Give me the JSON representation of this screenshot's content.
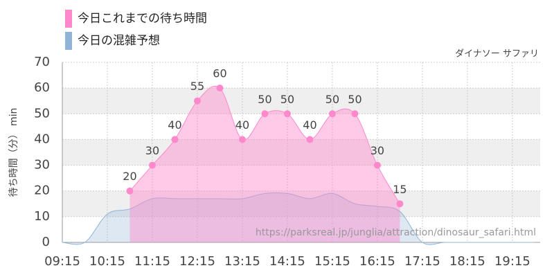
{
  "chart_data": {
    "type": "area",
    "subtitle": "ダイナソー サファリ",
    "y_label": "待ち時間（分） min",
    "annotation": "https://parksreal.jp/junglia/attraction/dinosaur_safari.html",
    "legend_position": "top-left",
    "grid": true,
    "xlim": [
      "09:15",
      "19:52"
    ],
    "xticks": [
      "09:15",
      "10:15",
      "11:15",
      "12:15",
      "13:15",
      "14:15",
      "15:15",
      "16:15",
      "17:15",
      "18:15",
      "19:15"
    ],
    "ylim": [
      0,
      70
    ],
    "yticks": [
      0,
      10,
      20,
      30,
      40,
      50,
      60,
      70
    ],
    "series": [
      {
        "name": "今日の混雑予想",
        "color": "#8fb4d6",
        "x": [
          "09:15",
          "09:45",
          "10:15",
          "10:45",
          "11:15",
          "11:45",
          "12:15",
          "12:45",
          "13:15",
          "13:45",
          "14:15",
          "14:45",
          "15:15",
          "15:45",
          "16:15",
          "16:45",
          "17:15",
          "17:45",
          "18:15",
          "18:45",
          "19:15",
          "19:45"
        ],
        "values": [
          0,
          0,
          11,
          13,
          17,
          17,
          17,
          17,
          17,
          19,
          19,
          17,
          19,
          15,
          14,
          12,
          0,
          0,
          0,
          0,
          0,
          0
        ]
      },
      {
        "name": "今日これまでの待ち時間",
        "color": "#ff88cc",
        "x": [
          "10:45",
          "11:15",
          "11:45",
          "12:15",
          "12:45",
          "13:15",
          "13:45",
          "14:15",
          "14:45",
          "15:15",
          "15:45",
          "16:15",
          "16:45"
        ],
        "values": [
          20,
          30,
          40,
          55,
          60,
          40,
          50,
          50,
          40,
          50,
          50,
          30,
          15
        ]
      }
    ]
  }
}
